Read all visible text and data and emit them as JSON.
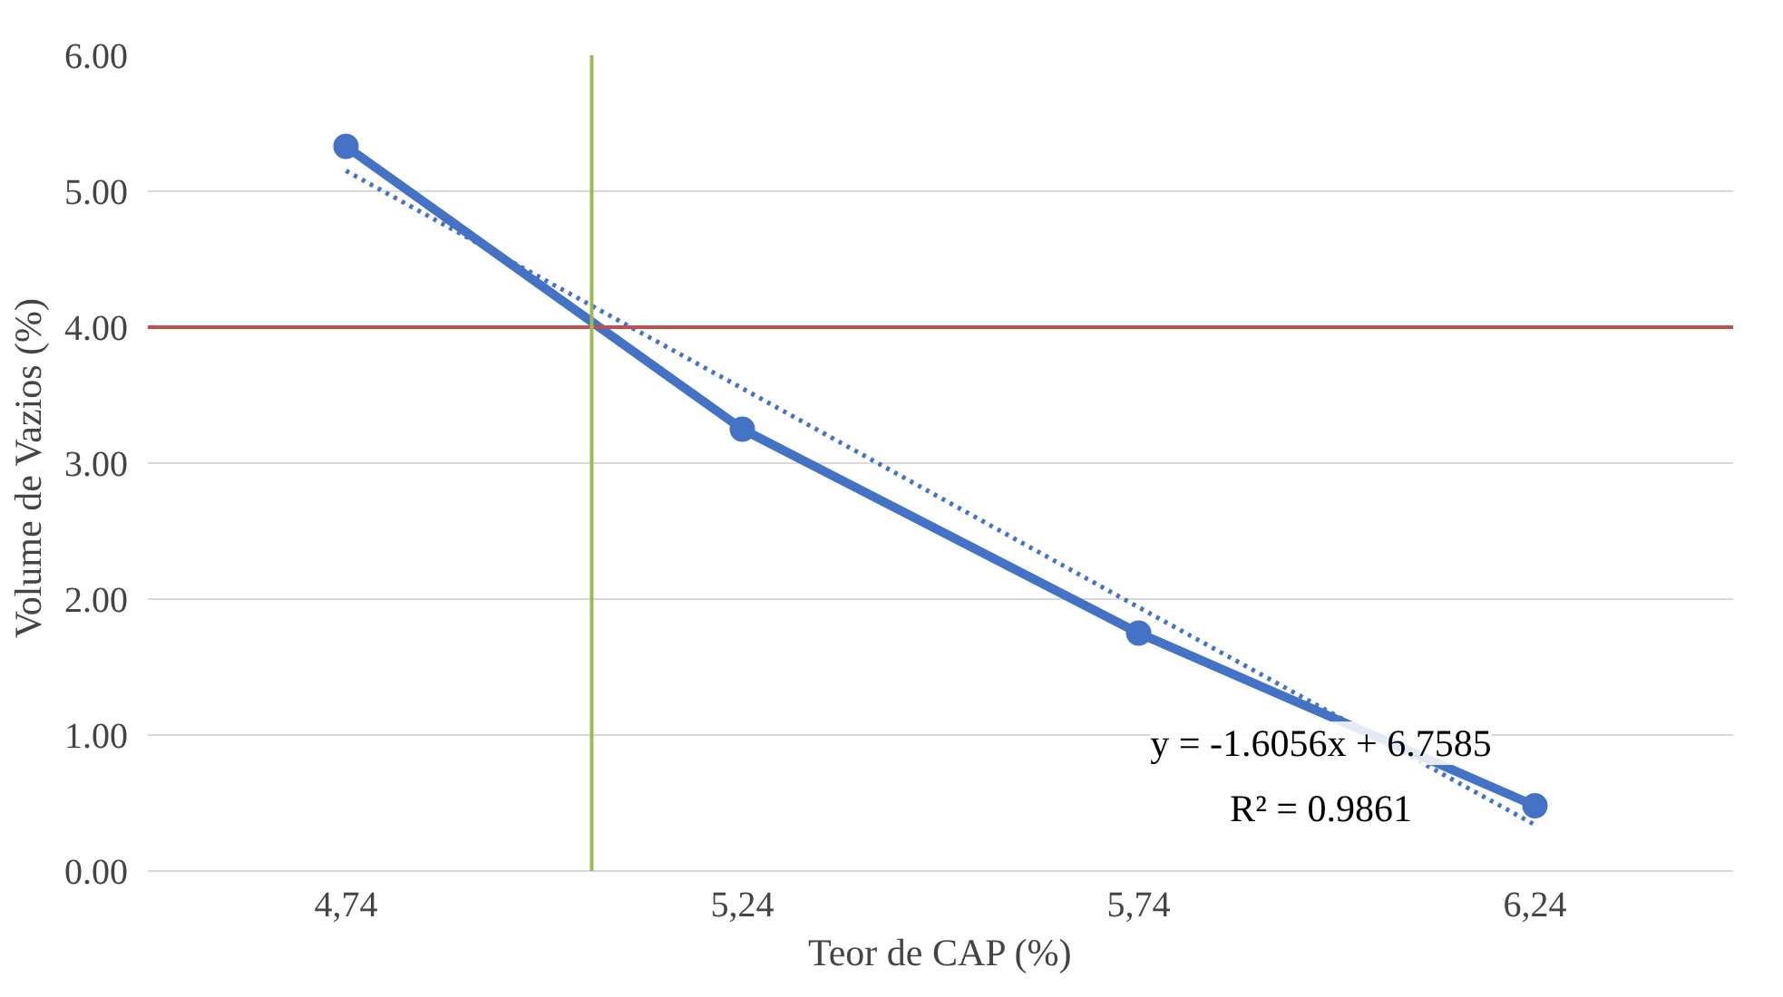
{
  "chart_data": {
    "type": "line",
    "xlabel": "Teor de CAP (%)",
    "ylabel": "Volume de Vazios  (%)",
    "x": [
      4.74,
      5.24,
      5.74,
      6.24
    ],
    "series": [
      {
        "color": "#4472c4",
        "values": [
          5.33,
          3.25,
          1.75,
          0.48
        ],
        "marker": "circle",
        "line_style": "solid"
      },
      {
        "color": "#4472c4",
        "x": [
          4.74,
          5.24,
          5.74,
          6.24
        ],
        "values": [
          5.15,
          3.55,
          1.94,
          0.34
        ],
        "marker": "none",
        "line_style": "dotted"
      }
    ],
    "xlim": [
      4.49,
      6.49
    ],
    "ylim": [
      0,
      6
    ],
    "xticks": [
      {
        "value": 4.74,
        "label": "4,74"
      },
      {
        "value": 5.24,
        "label": "5,24"
      },
      {
        "value": 5.74,
        "label": "5,74"
      },
      {
        "value": 6.24,
        "label": "6,24"
      }
    ],
    "yticks": [
      {
        "value": 0,
        "label": "0.00"
      },
      {
        "value": 1,
        "label": "1.00"
      },
      {
        "value": 2,
        "label": "2.00"
      },
      {
        "value": 3,
        "label": "3.00"
      },
      {
        "value": 4,
        "label": "4.00"
      },
      {
        "value": 5,
        "label": "5.00"
      },
      {
        "value": 6,
        "label": "6.00"
      }
    ],
    "ref_lines": [
      {
        "axis": "y",
        "value": 4,
        "color": "#c0504d"
      },
      {
        "axis": "x",
        "value": 5.05,
        "color": "#9bbb59"
      }
    ],
    "annotations": [
      "y = -1.6056x + 6.7585",
      "R² = 0.9861"
    ],
    "grid": "y"
  }
}
